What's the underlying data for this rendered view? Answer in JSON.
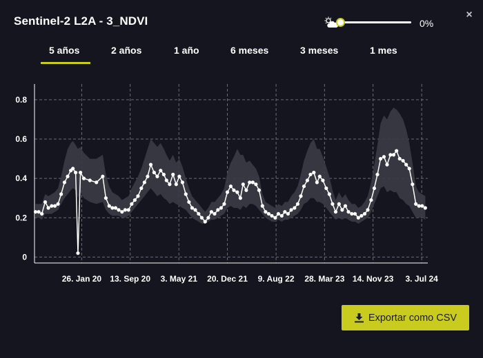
{
  "header": {
    "title": "Sentinel-2 L2A - 3_NDVI",
    "close_label": "×",
    "cloud_filter": {
      "icon": "cloud-sun-icon",
      "value": 0,
      "label": "0%"
    }
  },
  "tabs": [
    {
      "label": "5 años",
      "active": true
    },
    {
      "label": "2 años",
      "active": false
    },
    {
      "label": "1 año",
      "active": false
    },
    {
      "label": "6 meses",
      "active": false
    },
    {
      "label": "3 meses",
      "active": false
    },
    {
      "label": "1 mes",
      "active": false
    }
  ],
  "export_button": {
    "label": "Exportar como CSV",
    "icon": "download-icon"
  },
  "colors": {
    "accent": "#c9cc1f",
    "background": "#14151e",
    "line": "#ffffff",
    "band": "#3a3b44"
  },
  "chart_data": {
    "type": "line",
    "title": "",
    "xlabel": "",
    "ylabel": "",
    "x_start": "2019-06-15",
    "x_end": "2024-08-01",
    "ylim": [
      -0.03,
      0.88
    ],
    "yticks": [
      0,
      0.2,
      0.4,
      0.6,
      0.8
    ],
    "ytick_labels": [
      "0",
      "0.2",
      "0.4",
      "0.6",
      "0.8"
    ],
    "xticks": [
      "2020-01-26",
      "2020-09-13",
      "2021-05-03",
      "2021-12-20",
      "2022-08-09",
      "2023-03-28",
      "2023-11-14",
      "2024-07-03"
    ],
    "xtick_labels": [
      "26. Jan 20",
      "13. Sep 20",
      "3. May 21",
      "20. Dec 21",
      "9. Aug 22",
      "28. Mar 23",
      "14. Nov 23",
      "3. Jul 24"
    ],
    "grid": true,
    "series": [
      {
        "x": [
          "2019-06-20",
          "2019-07-05",
          "2019-07-20",
          "2019-08-05",
          "2019-08-20",
          "2019-09-05",
          "2019-09-20",
          "2019-10-05",
          "2019-10-20",
          "2019-11-05",
          "2019-11-20",
          "2019-12-05",
          "2019-12-15",
          "2019-12-28",
          "2020-01-08",
          "2020-01-20",
          "2020-02-05",
          "2020-03-05",
          "2020-04-05",
          "2020-05-05",
          "2020-05-20",
          "2020-06-05",
          "2020-06-20",
          "2020-07-05",
          "2020-07-20",
          "2020-08-05",
          "2020-08-20",
          "2020-09-05",
          "2020-09-20",
          "2020-10-05",
          "2020-10-20",
          "2020-11-05",
          "2020-11-20",
          "2020-12-05",
          "2020-12-20",
          "2021-01-05",
          "2021-01-20",
          "2021-02-05",
          "2021-02-20",
          "2021-03-05",
          "2021-03-20",
          "2021-04-05",
          "2021-04-20",
          "2021-05-05",
          "2021-05-20",
          "2021-06-05",
          "2021-06-20",
          "2021-07-05",
          "2021-07-20",
          "2021-08-05",
          "2021-08-20",
          "2021-09-05",
          "2021-09-20",
          "2021-10-05",
          "2021-10-20",
          "2021-11-05",
          "2021-11-20",
          "2021-12-05",
          "2021-12-20",
          "2022-01-05",
          "2022-01-20",
          "2022-02-05",
          "2022-02-20",
          "2022-03-05",
          "2022-03-20",
          "2022-04-05",
          "2022-04-20",
          "2022-05-05",
          "2022-05-20",
          "2022-06-05",
          "2022-06-20",
          "2022-07-05",
          "2022-07-20",
          "2022-08-05",
          "2022-08-20",
          "2022-09-05",
          "2022-09-20",
          "2022-10-05",
          "2022-10-20",
          "2022-11-05",
          "2022-11-20",
          "2022-12-05",
          "2022-12-20",
          "2023-01-05",
          "2023-01-20",
          "2023-02-05",
          "2023-02-20",
          "2023-03-05",
          "2023-03-20",
          "2023-04-05",
          "2023-04-20",
          "2023-05-05",
          "2023-05-20",
          "2023-06-05",
          "2023-06-20",
          "2023-07-05",
          "2023-07-20",
          "2023-08-05",
          "2023-08-20",
          "2023-09-05",
          "2023-09-20",
          "2023-10-05",
          "2023-10-20",
          "2023-11-05",
          "2023-11-20",
          "2023-12-05",
          "2023-12-20",
          "2024-01-05",
          "2024-01-20",
          "2024-02-05",
          "2024-02-20",
          "2024-03-05",
          "2024-03-20",
          "2024-04-05",
          "2024-04-20",
          "2024-05-05",
          "2024-05-20",
          "2024-06-05",
          "2024-06-20",
          "2024-07-05",
          "2024-07-20"
        ],
        "y": [
          0.23,
          0.23,
          0.22,
          0.28,
          0.25,
          0.26,
          0.26,
          0.27,
          0.32,
          0.38,
          0.41,
          0.44,
          0.45,
          0.43,
          0.02,
          0.43,
          0.4,
          0.39,
          0.38,
          0.41,
          0.3,
          0.26,
          0.25,
          0.25,
          0.24,
          0.23,
          0.24,
          0.24,
          0.27,
          0.29,
          0.31,
          0.35,
          0.38,
          0.41,
          0.47,
          0.43,
          0.41,
          0.44,
          0.42,
          0.39,
          0.37,
          0.42,
          0.37,
          0.41,
          0.38,
          0.32,
          0.28,
          0.25,
          0.24,
          0.22,
          0.2,
          0.18,
          0.2,
          0.23,
          0.22,
          0.24,
          0.25,
          0.27,
          0.33,
          0.36,
          0.34,
          0.33,
          0.3,
          0.37,
          0.34,
          0.38,
          0.38,
          0.37,
          0.34,
          0.26,
          0.23,
          0.22,
          0.21,
          0.2,
          0.22,
          0.21,
          0.23,
          0.22,
          0.24,
          0.25,
          0.27,
          0.31,
          0.36,
          0.39,
          0.42,
          0.43,
          0.38,
          0.41,
          0.39,
          0.35,
          0.32,
          0.27,
          0.23,
          0.27,
          0.24,
          0.26,
          0.23,
          0.22,
          0.22,
          0.2,
          0.21,
          0.22,
          0.24,
          0.29,
          0.35,
          0.42,
          0.5,
          0.51,
          0.47,
          0.52,
          0.52,
          0.54,
          0.5,
          0.49,
          0.47,
          0.45,
          0.37,
          0.27,
          0.26,
          0.26,
          0.25
        ],
        "band_lower": [
          0.2,
          0.2,
          0.19,
          0.22,
          0.22,
          0.22,
          0.23,
          0.24,
          0.27,
          0.3,
          0.32,
          0.34,
          0.35,
          0.34,
          0.3,
          0.33,
          0.3,
          0.28,
          0.27,
          0.28,
          0.24,
          0.22,
          0.21,
          0.21,
          0.21,
          0.2,
          0.2,
          0.21,
          0.23,
          0.25,
          0.27,
          0.29,
          0.31,
          0.33,
          0.35,
          0.33,
          0.31,
          0.32,
          0.3,
          0.29,
          0.27,
          0.28,
          0.27,
          0.26,
          0.25,
          0.24,
          0.22,
          0.2,
          0.19,
          0.18,
          0.17,
          0.17,
          0.18,
          0.19,
          0.19,
          0.2,
          0.21,
          0.22,
          0.25,
          0.26,
          0.25,
          0.25,
          0.24,
          0.26,
          0.25,
          0.27,
          0.27,
          0.26,
          0.24,
          0.22,
          0.2,
          0.19,
          0.18,
          0.18,
          0.19,
          0.18,
          0.19,
          0.19,
          0.2,
          0.21,
          0.22,
          0.24,
          0.27,
          0.28,
          0.3,
          0.3,
          0.28,
          0.28,
          0.27,
          0.25,
          0.23,
          0.21,
          0.19,
          0.2,
          0.19,
          0.2,
          0.19,
          0.18,
          0.18,
          0.17,
          0.18,
          0.19,
          0.2,
          0.23,
          0.27,
          0.31,
          0.35,
          0.36,
          0.33,
          0.34,
          0.33,
          0.33,
          0.3,
          0.29,
          0.27,
          0.26,
          0.23,
          0.2,
          0.2,
          0.2,
          0.19
        ],
        "band_upper": [
          0.27,
          0.27,
          0.27,
          0.32,
          0.31,
          0.32,
          0.33,
          0.35,
          0.41,
          0.49,
          0.55,
          0.58,
          0.59,
          0.57,
          0.55,
          0.56,
          0.53,
          0.5,
          0.5,
          0.52,
          0.42,
          0.36,
          0.33,
          0.32,
          0.31,
          0.29,
          0.3,
          0.31,
          0.35,
          0.38,
          0.41,
          0.45,
          0.5,
          0.55,
          0.6,
          0.58,
          0.56,
          0.58,
          0.55,
          0.52,
          0.49,
          0.52,
          0.48,
          0.5,
          0.46,
          0.4,
          0.35,
          0.31,
          0.29,
          0.27,
          0.25,
          0.23,
          0.25,
          0.28,
          0.28,
          0.3,
          0.32,
          0.35,
          0.43,
          0.48,
          0.51,
          0.55,
          0.52,
          0.52,
          0.48,
          0.49,
          0.47,
          0.45,
          0.41,
          0.32,
          0.28,
          0.27,
          0.26,
          0.25,
          0.27,
          0.26,
          0.28,
          0.28,
          0.31,
          0.33,
          0.36,
          0.42,
          0.49,
          0.54,
          0.58,
          0.6,
          0.55,
          0.55,
          0.51,
          0.46,
          0.41,
          0.34,
          0.29,
          0.33,
          0.3,
          0.32,
          0.29,
          0.27,
          0.27,
          0.25,
          0.26,
          0.28,
          0.31,
          0.38,
          0.47,
          0.57,
          0.68,
          0.72,
          0.7,
          0.74,
          0.76,
          0.75,
          0.73,
          0.7,
          0.65,
          0.58,
          0.48,
          0.36,
          0.33,
          0.32,
          0.31
        ]
      }
    ]
  }
}
